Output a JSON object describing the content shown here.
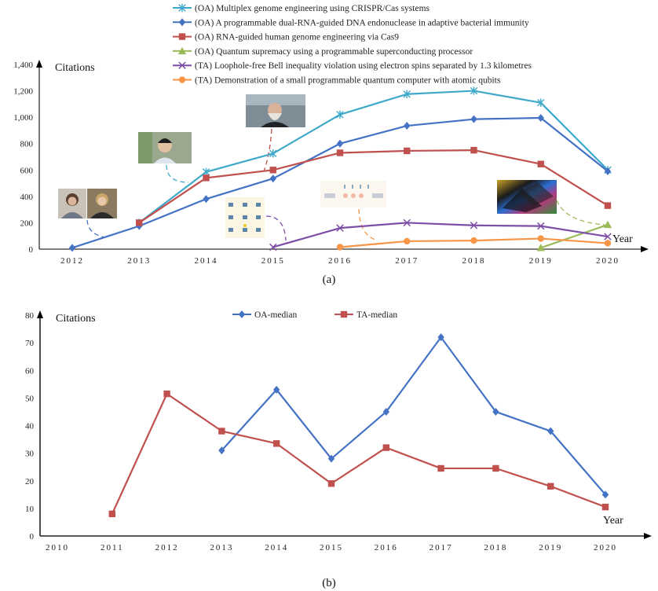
{
  "chart_data": [
    {
      "type": "line",
      "caption": "(a)",
      "ylabel": "Citations",
      "xlabel": "Year",
      "ylim": [
        0,
        1400
      ],
      "yticks": [
        "0",
        "200",
        "400",
        "600",
        "800",
        "1,000",
        "1,200",
        "1,400"
      ],
      "ytick_values": [
        0,
        200,
        400,
        600,
        800,
        1000,
        1200,
        1400
      ],
      "categories": [
        "2012",
        "2013",
        "2014",
        "2015",
        "2016",
        "2017",
        "2018",
        "2019",
        "2020"
      ],
      "legend_position": "top",
      "series": [
        {
          "name": "(OA) Multiplex genome engineering using CRISPR/Cas systems",
          "color": "#3fa9c9",
          "marker": "star",
          "values": [
            null,
            200,
            585,
            725,
            1020,
            1175,
            1200,
            1110,
            600
          ]
        },
        {
          "name": "(OA) A programmable dual-RNA-guided DNA endonuclease in adaptive bacterial immunity",
          "color": "#4472c4",
          "marker": "diamond",
          "values": [
            10,
            175,
            380,
            535,
            800,
            935,
            985,
            995,
            590
          ]
        },
        {
          "name": "(OA) RNA-guided human genome engineering via Cas9",
          "color": "#c0504d",
          "marker": "square",
          "values": [
            null,
            200,
            540,
            600,
            730,
            745,
            750,
            645,
            330
          ]
        },
        {
          "name": "(OA) Quantum supremacy using a programmable superconducting processor",
          "color": "#9bbb59",
          "marker": "triangle",
          "values": [
            null,
            null,
            null,
            null,
            null,
            null,
            null,
            10,
            185
          ]
        },
        {
          "name": "(TA) Loophole-free Bell inequality violation using electron spins separated by 1.3 kilometres",
          "color": "#7e4fa6",
          "marker": "x",
          "values": [
            null,
            null,
            null,
            15,
            160,
            200,
            180,
            175,
            95
          ]
        },
        {
          "name": "(TA) Demonstration of a small programmable quantum computer with atomic qubits",
          "color": "#f79646",
          "marker": "circle",
          "values": [
            null,
            null,
            null,
            null,
            15,
            60,
            65,
            80,
            45
          ]
        }
      ]
    },
    {
      "type": "line",
      "caption": "(b)",
      "ylabel": "Citations",
      "xlabel": "Year",
      "ylim": [
        0,
        80
      ],
      "yticks": [
        "0",
        "10",
        "20",
        "30",
        "40",
        "50",
        "60",
        "70",
        "80"
      ],
      "ytick_values": [
        0,
        10,
        20,
        30,
        40,
        50,
        60,
        70,
        80
      ],
      "categories": [
        "2010",
        "2011",
        "2012",
        "2013",
        "2014",
        "2015",
        "2016",
        "2017",
        "2018",
        "2019",
        "2020"
      ],
      "legend_position": "top",
      "series": [
        {
          "name": "OA-median",
          "color": "#4472c4",
          "marker": "diamond",
          "values": [
            null,
            null,
            null,
            31,
            53,
            28,
            45,
            72,
            45,
            38,
            15
          ]
        },
        {
          "name": "TA-median",
          "color": "#c0504d",
          "marker": "square",
          "values": [
            null,
            8,
            51.5,
            38,
            33.5,
            19,
            32,
            24.5,
            24.5,
            18,
            10.5
          ]
        }
      ]
    }
  ]
}
